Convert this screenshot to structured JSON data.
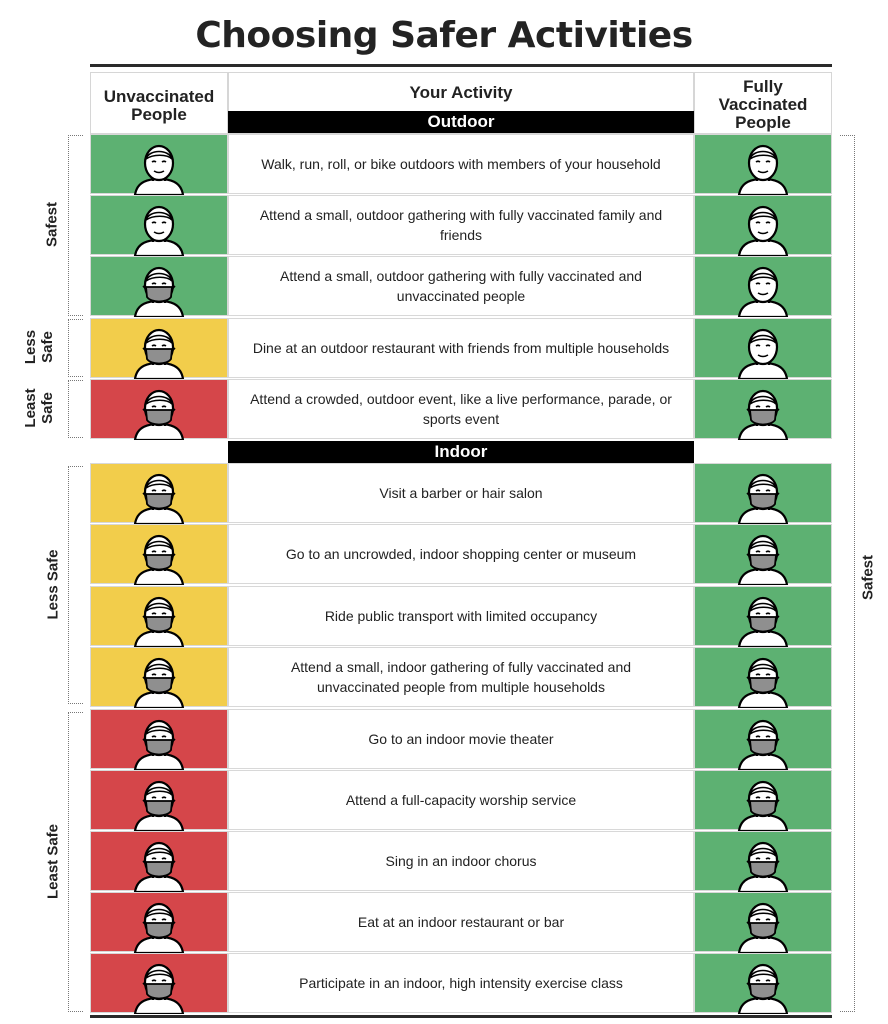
{
  "title": "Choosing Safer Activities",
  "headers": {
    "left": "Unvaccinated People",
    "center": "Your Activity",
    "right": "Fully Vaccinated People"
  },
  "sections": {
    "outdoor": "Outdoor",
    "indoor": "Indoor"
  },
  "side_labels": {
    "safest_left": "Safest",
    "less_safe_outdoor_1": "Less",
    "less_safe_outdoor_2": "Safe",
    "least_safe_outdoor_1": "Least",
    "least_safe_outdoor_2": "Safe",
    "less_safe_indoor": "Less Safe",
    "least_safe_indoor": "Least Safe",
    "safest_right": "Safest"
  },
  "colors": {
    "green": "#5db172",
    "yellow": "#f2cd4b",
    "red": "#d5464a"
  },
  "rows": [
    {
      "activity": "Walk, run, roll, or bike outdoors with members of your household",
      "unvax": "green",
      "unvax_mask": false,
      "vax_mask": false
    },
    {
      "activity": "Attend a small, outdoor gathering with fully vaccinated family and friends",
      "unvax": "green",
      "unvax_mask": false,
      "vax_mask": false
    },
    {
      "activity": "Attend a small, outdoor gathering with fully vaccinated and unvaccinated people",
      "unvax": "green",
      "unvax_mask": true,
      "vax_mask": false
    },
    {
      "activity": "Dine at an outdoor restaurant with friends from multiple households",
      "unvax": "yellow",
      "unvax_mask": true,
      "vax_mask": false
    },
    {
      "activity": "Attend a crowded, outdoor event, like a live performance, parade, or sports event",
      "unvax": "red",
      "unvax_mask": true,
      "vax_mask": true
    },
    {
      "activity": "Visit a barber or hair salon",
      "unvax": "yellow",
      "unvax_mask": true,
      "vax_mask": true
    },
    {
      "activity": "Go to an uncrowded, indoor shopping center or museum",
      "unvax": "yellow",
      "unvax_mask": true,
      "vax_mask": true
    },
    {
      "activity": "Ride public transport with limited occupancy",
      "unvax": "yellow",
      "unvax_mask": true,
      "vax_mask": true
    },
    {
      "activity": "Attend a small, indoor gathering of fully vaccinated and unvaccinated people from multiple households",
      "unvax": "yellow",
      "unvax_mask": true,
      "vax_mask": true
    },
    {
      "activity": "Go to an indoor movie theater",
      "unvax": "red",
      "unvax_mask": true,
      "vax_mask": true
    },
    {
      "activity": "Attend a full-capacity worship service",
      "unvax": "red",
      "unvax_mask": true,
      "vax_mask": true
    },
    {
      "activity": "Sing in an indoor chorus",
      "unvax": "red",
      "unvax_mask": true,
      "vax_mask": true
    },
    {
      "activity": "Eat at an indoor restaurant or bar",
      "unvax": "red",
      "unvax_mask": true,
      "vax_mask": true
    },
    {
      "activity": "Participate in an indoor, high intensity exercise class",
      "unvax": "red",
      "unvax_mask": true,
      "vax_mask": true
    }
  ]
}
